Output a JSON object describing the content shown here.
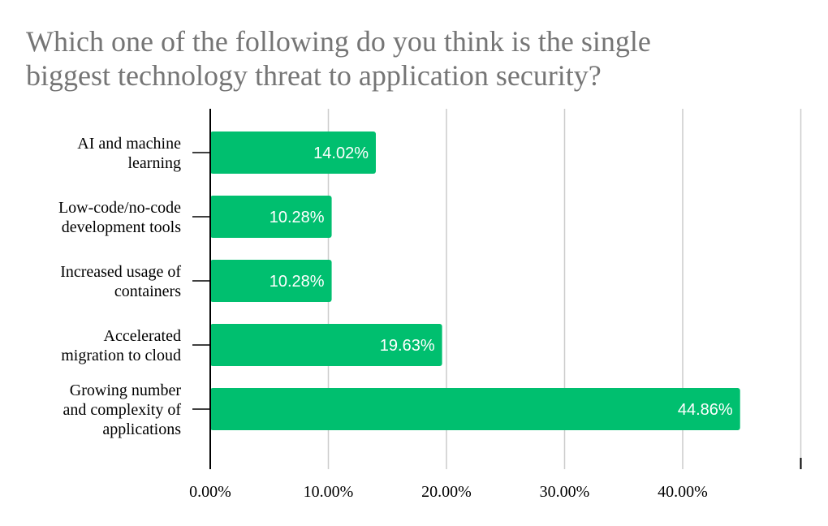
{
  "chart_data": {
    "type": "bar",
    "orientation": "horizontal",
    "title_lines": [
      "Which one of the following do you think is the single",
      "biggest technology threat to application security?"
    ],
    "categories": [
      [
        "AI and machine",
        "learning"
      ],
      [
        "Low-code/no-code",
        "development tools"
      ],
      [
        "Increased usage of",
        "containers"
      ],
      [
        "Accelerated",
        "migration to cloud"
      ],
      [
        "Growing number",
        "and complexity of",
        "applications"
      ]
    ],
    "values": [
      14.02,
      10.28,
      10.28,
      19.63,
      44.86
    ],
    "data_labels": [
      "14.02%",
      "10.28%",
      "10.28%",
      "19.63%",
      "44.86%"
    ],
    "x_ticks": [
      0,
      10,
      20,
      30,
      40
    ],
    "x_tick_labels": [
      "0.00%",
      "10.00%",
      "20.00%",
      "30.00%",
      "40.00%"
    ],
    "xlim": [
      0,
      50
    ],
    "grid": true,
    "bar_color": "#00bf6f",
    "grid_color": "#cccccc",
    "title_color": "#757575"
  }
}
